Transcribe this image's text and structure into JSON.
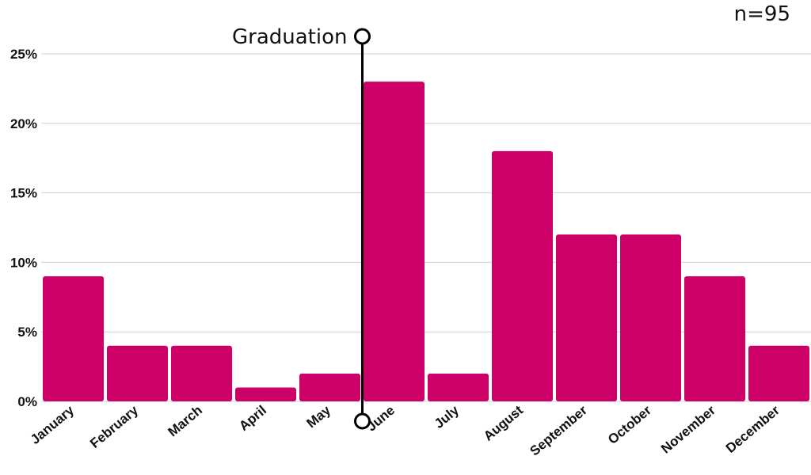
{
  "chart_data": {
    "type": "bar",
    "categories": [
      "January",
      "February",
      "March",
      "April",
      "May",
      "June",
      "July",
      "August",
      "September",
      "October",
      "November",
      "December"
    ],
    "values": [
      9,
      4,
      4,
      1,
      2,
      23,
      2,
      18,
      12,
      12,
      9,
      4
    ],
    "ylim": [
      0,
      25
    ],
    "yticks": [
      "0%",
      "5%",
      "10%",
      "15%",
      "20%",
      "25%"
    ],
    "grid": true,
    "bar_color": "#CC0066",
    "annotation": {
      "label": "Graduation",
      "between": [
        "May",
        "June"
      ]
    },
    "sample_size": "n=95"
  }
}
